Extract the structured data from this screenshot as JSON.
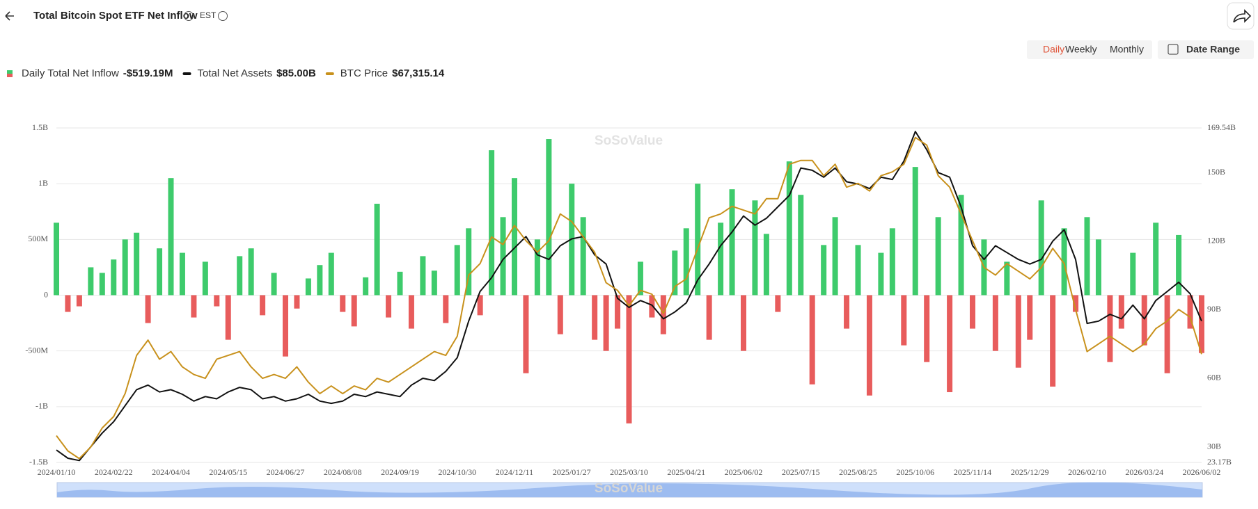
{
  "header": {
    "title": "Total Bitcoin Spot ETF Net Inflow",
    "timezone": "EST",
    "tabs": [
      "Daily",
      "Weekly",
      "Monthly"
    ],
    "date_range": "Date Range"
  },
  "chart_data": {
    "type": "bar-line",
    "watermark": "SoSoValue",
    "categories": [
      "2024/01/10",
      null,
      null,
      null,
      null,
      "2024/02/22",
      null,
      null,
      null,
      null,
      "2024/04/04",
      null,
      null,
      null,
      null,
      "2024/05/15",
      null,
      null,
      null,
      null,
      "2024/06/27",
      null,
      null,
      null,
      null,
      "2024/08/08",
      null,
      null,
      null,
      null,
      "2024/09/19",
      null,
      null,
      null,
      null,
      "2024/10/30",
      null,
      null,
      null,
      null,
      "2024/12/11",
      null,
      null,
      null,
      null,
      "2025/01/27",
      null,
      null,
      null,
      null,
      "2025/03/10",
      null,
      null,
      null,
      null,
      "2025/04/21",
      null,
      null,
      null,
      null,
      "2025/06/02",
      null,
      null,
      null,
      null,
      "2025/07/15",
      null,
      null,
      null,
      null,
      "2025/08/25",
      null,
      null,
      null,
      null,
      "2025/10/06",
      null,
      null,
      null,
      null,
      "2025/11/14",
      null,
      null,
      null,
      null,
      "2025/12/29",
      null,
      null,
      null,
      null,
      "2026/02/10",
      null,
      null,
      null,
      null,
      "2026/03/24",
      null,
      null,
      null,
      null,
      "2026/06/02"
    ],
    "ylim": [
      -1500,
      1500
    ],
    "yticks": [
      {
        "value": -1500,
        "label": "-1.5B"
      },
      {
        "value": -1000,
        "label": "-1B"
      },
      {
        "value": -500,
        "label": "-500M"
      },
      0,
      {
        "value": 500,
        "label": "500M"
      },
      {
        "value": 1000,
        "label": "1B"
      },
      {
        "value": 1500,
        "label": "1.5B"
      }
    ],
    "y2lim": [
      23.17,
      169.54
    ],
    "y2ticks": [
      {
        "value": 23.17,
        "label": "23.17B"
      },
      {
        "value": 30,
        "label": "30B"
      },
      {
        "value": 60,
        "label": "60B"
      },
      {
        "value": 90,
        "label": "90B"
      },
      {
        "value": 120,
        "label": "120B"
      },
      {
        "value": 150,
        "label": "150B"
      },
      {
        "value": 169.54,
        "label": "169.54B"
      }
    ],
    "y3lim": [
      39,
      126.5
    ],
    "grid": true,
    "series": [
      {
        "name": "Daily Total Net Inflow",
        "latest": "-$519.19M",
        "type": "bar",
        "color": "#3ecb6c",
        "negative_color": "#e85c5c",
        "values": [
          650,
          -150,
          -100,
          250,
          200,
          320,
          500,
          560,
          -250,
          420,
          1050,
          380,
          -200,
          300,
          -100,
          -400,
          350,
          420,
          -180,
          200,
          -550,
          -120,
          150,
          270,
          380,
          -150,
          -280,
          160,
          820,
          -200,
          210,
          -300,
          350,
          220,
          -250,
          450,
          600,
          -180,
          1300,
          700,
          1050,
          -700,
          500,
          1400,
          -350,
          1000,
          700,
          -400,
          -500,
          -300,
          -1150,
          300,
          -200,
          -350,
          400,
          600,
          1000,
          -400,
          650,
          950,
          -500,
          850,
          550,
          -150,
          1200,
          900,
          -800,
          450,
          700,
          -300,
          450,
          -900,
          380,
          600,
          -450,
          1150,
          -600,
          700,
          -870,
          900,
          -300,
          500,
          -500,
          300,
          -650,
          -400,
          850,
          -820,
          600,
          -150,
          700,
          500,
          -600,
          -300,
          380,
          -450,
          650,
          -700,
          540,
          -300,
          -519.19
        ]
      },
      {
        "name": "Total Net Assets",
        "latest": "$85.00B",
        "type": "line",
        "axis": "y2",
        "color": "#111111",
        "values": [
          28.6,
          25,
          24,
          30,
          36,
          41,
          48,
          55,
          57,
          54,
          55,
          53,
          50,
          52,
          51,
          54,
          56,
          55,
          51,
          52,
          50,
          51,
          53,
          50,
          49,
          50,
          53,
          52,
          54,
          53,
          52,
          57,
          60,
          59,
          63,
          69,
          85,
          98,
          104,
          112,
          117,
          122,
          114,
          112,
          118,
          121,
          122,
          114,
          110,
          95,
          91,
          94,
          92,
          86,
          89,
          93,
          103,
          110,
          118,
          124,
          131,
          127,
          130,
          135,
          140,
          152,
          151,
          148,
          152,
          146,
          145,
          143,
          148,
          147,
          155,
          168,
          160,
          150,
          148,
          135,
          118,
          112,
          118,
          115,
          112,
          110,
          112,
          120,
          125,
          112,
          84,
          85,
          88,
          86,
          92,
          86,
          94,
          98,
          102,
          97,
          85
        ]
      },
      {
        "name": "BTC Price",
        "latest": "$67,315.14",
        "type": "line",
        "axis": "y3",
        "color": "#c8911c",
        "values": [
          46,
          42,
          40,
          43,
          48,
          51,
          57,
          67,
          71,
          66,
          68,
          64,
          62,
          61,
          66,
          67,
          68,
          64,
          61,
          62,
          61,
          64,
          60,
          57,
          59,
          57,
          59,
          58,
          61,
          60,
          62,
          64,
          66,
          68,
          67,
          72,
          88,
          91,
          98,
          96,
          101,
          97,
          94,
          97,
          104,
          102,
          98,
          94,
          86,
          84,
          80,
          84,
          83,
          78,
          85,
          87,
          95,
          103,
          104,
          106,
          105,
          104,
          108,
          108,
          117,
          118,
          118,
          114,
          117,
          111,
          112,
          110,
          114,
          115,
          117,
          124,
          122,
          114,
          111,
          104,
          97,
          90,
          88,
          91,
          89,
          87,
          90,
          95,
          91,
          79,
          68,
          70,
          72,
          70,
          68,
          70,
          74,
          76,
          79,
          77,
          67.31514
        ]
      }
    ]
  }
}
